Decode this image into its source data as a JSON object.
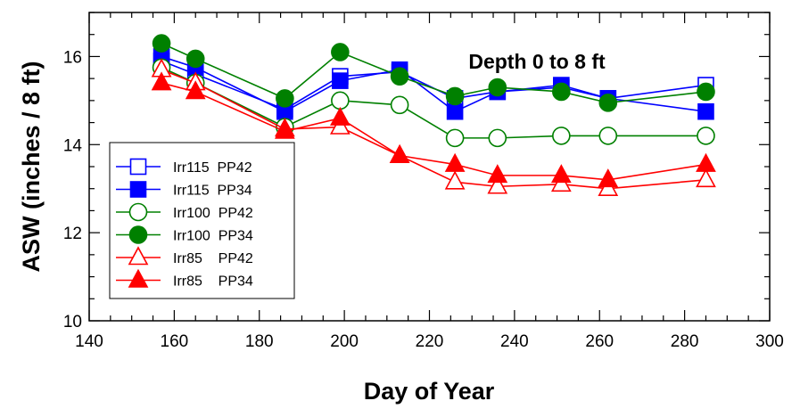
{
  "chart_data": {
    "type": "line",
    "title": "",
    "annotation": "Depth 0 to 8 ft",
    "xlabel": "Day of Year",
    "ylabel": "ASW (inches / 8 ft)",
    "xlim": [
      140,
      300
    ],
    "ylim": [
      10,
      17
    ],
    "xticks": [
      140,
      160,
      180,
      200,
      220,
      240,
      260,
      280,
      300
    ],
    "yticks": [
      10,
      12,
      14,
      16
    ],
    "x_minor_step": 5,
    "y_minor_step": 0.5,
    "grid": false,
    "legend_position": "bottom-left",
    "series": [
      {
        "name": "Irr115  PP42",
        "color": "#0000ff",
        "marker": "square",
        "filled": false,
        "points": [
          [
            157,
            15.9
          ],
          [
            165,
            15.6
          ],
          [
            186,
            14.8
          ],
          [
            199,
            15.55
          ],
          [
            213,
            15.65
          ],
          [
            226,
            15.05
          ],
          [
            236,
            15.2
          ],
          [
            251,
            15.3
          ],
          [
            262,
            15.05
          ],
          [
            285,
            15.35
          ]
        ]
      },
      {
        "name": "Irr115  PP34",
        "color": "#0000ff",
        "marker": "square",
        "filled": true,
        "points": [
          [
            157,
            16.0
          ],
          [
            165,
            15.75
          ],
          [
            186,
            14.75
          ],
          [
            199,
            15.45
          ],
          [
            213,
            15.7
          ],
          [
            226,
            14.75
          ],
          [
            236,
            15.2
          ],
          [
            251,
            15.35
          ],
          [
            262,
            15.05
          ],
          [
            285,
            14.75
          ]
        ]
      },
      {
        "name": "Irr100  PP42",
        "color": "#008000",
        "marker": "circle",
        "filled": false,
        "points": [
          [
            157,
            15.75
          ],
          [
            165,
            15.4
          ],
          [
            186,
            14.4
          ],
          [
            199,
            15.0
          ],
          [
            213,
            14.9
          ],
          [
            226,
            14.15
          ],
          [
            236,
            14.15
          ],
          [
            251,
            14.2
          ],
          [
            262,
            14.2
          ],
          [
            285,
            14.2
          ]
        ]
      },
      {
        "name": "Irr100  PP34",
        "color": "#008000",
        "marker": "circle",
        "filled": true,
        "points": [
          [
            157,
            16.3
          ],
          [
            165,
            15.95
          ],
          [
            186,
            15.05
          ],
          [
            199,
            16.1
          ],
          [
            213,
            15.55
          ],
          [
            226,
            15.1
          ],
          [
            236,
            15.3
          ],
          [
            251,
            15.2
          ],
          [
            262,
            14.95
          ],
          [
            285,
            15.2
          ]
        ]
      },
      {
        "name": "Irr85    PP42",
        "color": "#ff0000",
        "marker": "triangle",
        "filled": false,
        "points": [
          [
            157,
            15.7
          ],
          [
            165,
            15.4
          ],
          [
            186,
            14.35
          ],
          [
            199,
            14.4
          ],
          [
            213,
            13.75
          ],
          [
            226,
            13.15
          ],
          [
            236,
            13.05
          ],
          [
            251,
            13.1
          ],
          [
            262,
            13.0
          ],
          [
            285,
            13.2
          ]
        ]
      },
      {
        "name": "Irr85    PP34",
        "color": "#ff0000",
        "marker": "triangle",
        "filled": true,
        "points": [
          [
            157,
            15.4
          ],
          [
            165,
            15.2
          ],
          [
            186,
            14.3
          ],
          [
            199,
            14.6
          ],
          [
            213,
            13.75
          ],
          [
            226,
            13.55
          ],
          [
            236,
            13.3
          ],
          [
            251,
            13.3
          ],
          [
            262,
            13.2
          ],
          [
            285,
            13.55
          ]
        ]
      }
    ]
  }
}
